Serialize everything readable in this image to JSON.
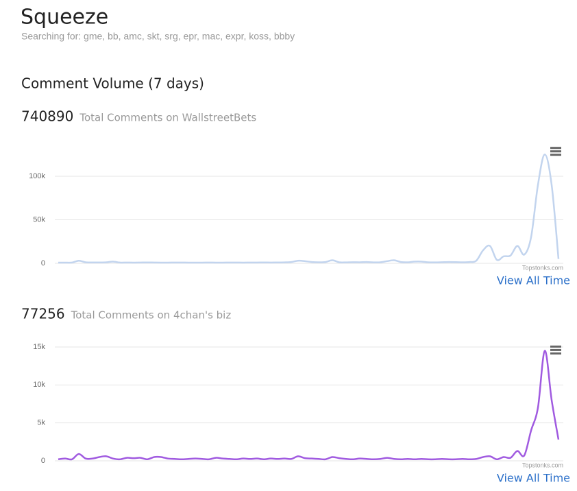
{
  "header": {
    "title": "Squeeze",
    "subtitle": "Searching for: gme, bb, amc, skt, srg, epr, mac, expr, koss, bbby"
  },
  "section_title": "Comment Volume (7 days)",
  "panels": [
    {
      "total": 740890,
      "total_label": "Total Comments on WallstreetBets",
      "credit": "Topstonks.com",
      "link": "View All Time"
    },
    {
      "total": 77256,
      "total_label": "Total Comments on 4chan's biz",
      "credit": "Topstonks.com",
      "link": "View All Time"
    }
  ],
  "chart_data": [
    {
      "type": "line",
      "color": "#c2d4ee",
      "grid": true,
      "ylim": [
        0,
        140000
      ],
      "yticks": [
        0,
        {
          "value": 50000,
          "label": "50k"
        },
        {
          "value": 100000,
          "label": "100k"
        }
      ],
      "values": [
        800,
        800,
        900,
        3000,
        1200,
        1000,
        1000,
        1200,
        2000,
        900,
        900,
        800,
        900,
        1000,
        900,
        800,
        800,
        900,
        900,
        800,
        800,
        800,
        900,
        800,
        800,
        900,
        900,
        800,
        900,
        900,
        1000,
        900,
        1000,
        1100,
        1500,
        3000,
        2500,
        1500,
        1200,
        1500,
        3500,
        1200,
        1100,
        1300,
        1200,
        1500,
        1100,
        1200,
        2500,
        3500,
        1500,
        1200,
        2000,
        2000,
        1200,
        1100,
        1300,
        1500,
        1400,
        1200,
        1500,
        3000,
        15000,
        20000,
        4000,
        8000,
        9000,
        20000,
        10000,
        30000,
        90000,
        125000,
        90000,
        5000
      ]
    },
    {
      "type": "line",
      "color": "#a05ae0",
      "grid": true,
      "ylim": [
        0,
        16000
      ],
      "yticks": [
        0,
        {
          "value": 5000,
          "label": "5k"
        },
        {
          "value": 10000,
          "label": "10k"
        },
        {
          "value": 15000,
          "label": "15k"
        }
      ],
      "values": [
        200,
        300,
        200,
        900,
        300,
        300,
        500,
        600,
        300,
        200,
        400,
        350,
        400,
        200,
        500,
        500,
        300,
        250,
        200,
        250,
        300,
        250,
        200,
        400,
        300,
        250,
        200,
        300,
        250,
        300,
        200,
        300,
        250,
        300,
        250,
        600,
        350,
        300,
        250,
        200,
        500,
        350,
        250,
        200,
        300,
        250,
        200,
        250,
        400,
        250,
        200,
        250,
        200,
        250,
        200,
        200,
        250,
        200,
        200,
        250,
        200,
        250,
        500,
        600,
        200,
        500,
        400,
        1300,
        700,
        4000,
        7000,
        14500,
        8000,
        2800
      ]
    }
  ]
}
